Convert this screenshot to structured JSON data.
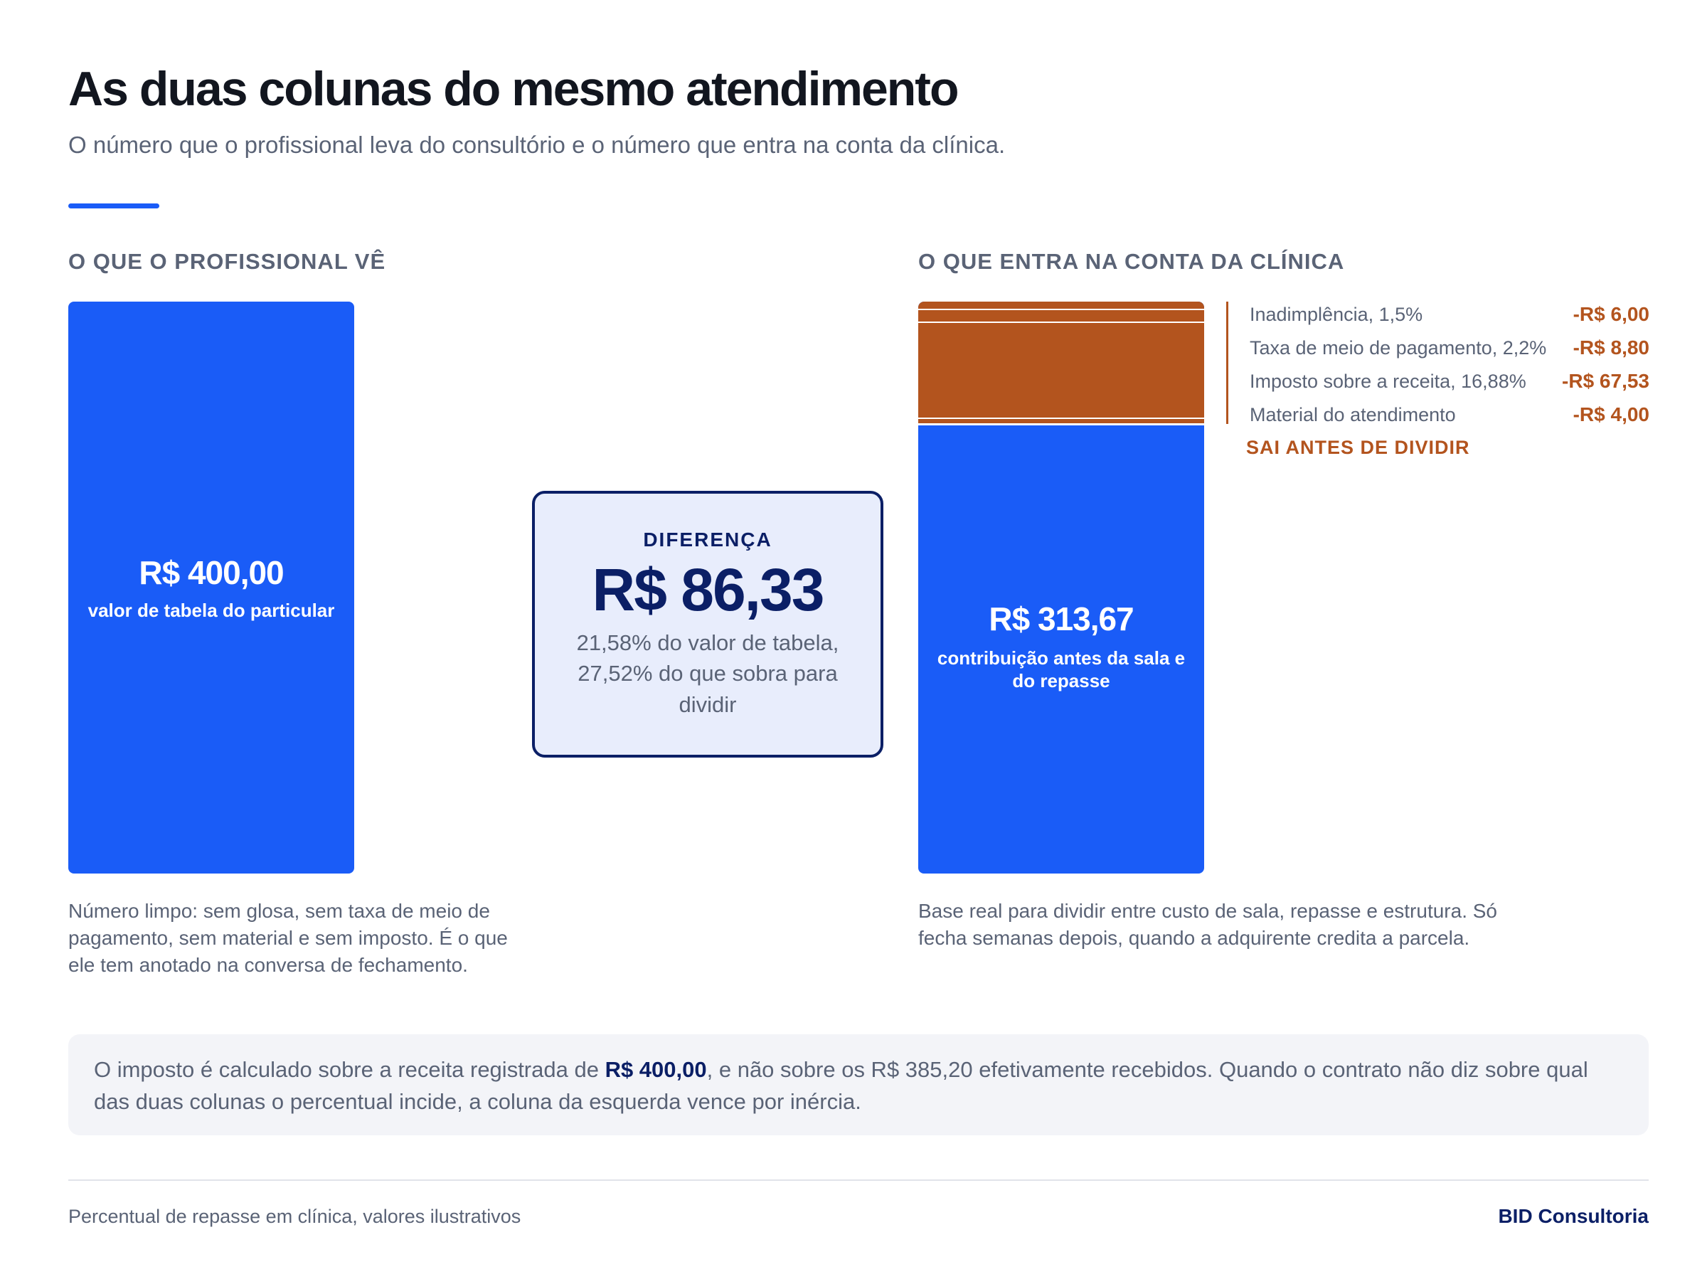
{
  "header": {
    "title": "As duas colunas do mesmo atendimento",
    "subtitle": "O número que o profissional leva do consultório e o número que entra na conta da clínica."
  },
  "colors": {
    "accent": "#1a5cf7",
    "deduction": "#b3541e",
    "navy": "#0b1f66"
  },
  "left": {
    "heading": "O QUE O PROFISSIONAL VÊ",
    "value_label": "R$ 400,00",
    "caption": "valor de tabela do particular",
    "note": "Número limpo: sem glosa, sem taxa de meio de pagamento, sem material e sem imposto. É o que ele tem anotado na conversa de fechamento."
  },
  "difference": {
    "label": "DIFERENÇA",
    "value": "R$ 86,33",
    "note": "21,58% do valor de tabela, 27,52% do que sobra para dividir"
  },
  "right": {
    "heading": "O QUE ENTRA NA CONTA DA CLÍNICA",
    "value_label": "R$ 313,67",
    "caption": "contribuição antes da sala e do repasse",
    "deductions_tag": "SAI ANTES DE DIVIDIR",
    "note": "Base real para dividir entre custo de sala, repasse e estrutura. Só fecha semanas depois, quando a adquirente credita a parcela."
  },
  "chart_data": {
    "type": "bar",
    "categories": [
      "O QUE O PROFISSIONAL VÊ",
      "O QUE ENTRA NA CONTA DA CLÍNICA"
    ],
    "total": 400.0,
    "base_value": 313.67,
    "deductions": [
      {
        "name": "Inadimplência, 1,5%",
        "value": 6.0,
        "label": "-R$ 6,00"
      },
      {
        "name": "Taxa de meio de pagamento, 2,2%",
        "value": 8.8,
        "label": "-R$ 8,80"
      },
      {
        "name": "Imposto sobre a receita, 16,88%",
        "value": 67.53,
        "label": "-R$ 67,53"
      },
      {
        "name": "Material do atendimento",
        "value": 4.0,
        "label": "-R$ 4,00"
      }
    ],
    "difference": 86.33
  },
  "callout": {
    "prefix": "O imposto é calculado sobre a receita registrada de ",
    "highlight": "R$ 400,00",
    "suffix": ", e não sobre os R$ 385,20 efetivamente recebidos. Quando o contrato não diz sobre qual das duas colunas o percentual incide, a coluna da esquerda vence por inércia."
  },
  "footer": {
    "source": "Percentual de repasse em clínica, valores ilustrativos",
    "brand": "BID Consultoria"
  }
}
